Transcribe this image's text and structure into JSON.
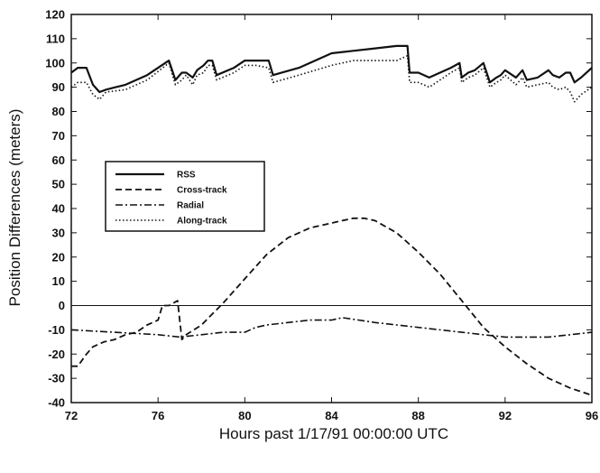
{
  "chart_data": {
    "type": "line",
    "title": "",
    "xlabel": "Hours past 1/17/91 00:00:00 UTC",
    "ylabel": "Position Differences (meters)",
    "xlim": [
      72,
      96
    ],
    "ylim": [
      -40,
      120
    ],
    "xticks": [
      72,
      76,
      80,
      84,
      88,
      92,
      96
    ],
    "yticks": [
      -40,
      -30,
      -20,
      -10,
      0,
      10,
      20,
      30,
      40,
      50,
      60,
      70,
      80,
      90,
      100,
      110,
      120
    ],
    "grid": false,
    "legend_position": "center-left",
    "zero_line": true,
    "series": [
      {
        "name": "RSS",
        "style": "solid",
        "x": [
          72,
          72.3,
          72.7,
          73.0,
          73.3,
          73.6,
          74.5,
          75.5,
          76.5,
          76.8,
          77.1,
          77.3,
          77.6,
          77.8,
          78.1,
          78.3,
          78.5,
          78.7,
          79.5,
          80.0,
          80.5,
          81.1,
          81.3,
          82.5,
          84.0,
          85.0,
          86.0,
          87.0,
          87.5,
          87.6,
          88.0,
          88.5,
          89.0,
          89.5,
          89.9,
          90.0,
          90.3,
          90.6,
          91.0,
          91.3,
          91.6,
          91.8,
          92.0,
          92.5,
          92.8,
          93.0,
          93.5,
          94.0,
          94.2,
          94.5,
          94.8,
          95.0,
          95.2,
          95.5,
          96.0
        ],
        "y": [
          96,
          98,
          98,
          91,
          88,
          89,
          91,
          95,
          101,
          93,
          96,
          96,
          94,
          97,
          99,
          101,
          101,
          95,
          98,
          101,
          101,
          101,
          95,
          98,
          104,
          105,
          106,
          107,
          107,
          96,
          96,
          94,
          96,
          98,
          100,
          94,
          96,
          97,
          100,
          92,
          94,
          95,
          97,
          94,
          97,
          93,
          94,
          97,
          95,
          94,
          96,
          96,
          92,
          94,
          98
        ]
      },
      {
        "name": "Cross-track",
        "style": "dashed",
        "x": [
          72,
          72.3,
          72.7,
          73.0,
          73.5,
          74.0,
          74.5,
          75.0,
          75.5,
          76.0,
          76.2,
          76.5,
          76.7,
          76.9,
          77.1,
          77.3,
          78.0,
          79.0,
          80.0,
          81.0,
          82.0,
          83.0,
          84.0,
          84.5,
          85.0,
          85.5,
          86.0,
          87.0,
          88.0,
          89.0,
          90.0,
          91.0,
          92.0,
          93.0,
          94.0,
          95.0,
          96.0
        ],
        "y": [
          -25,
          -25,
          -20,
          -17,
          -15,
          -14,
          -12,
          -11,
          -8,
          -6,
          0,
          0,
          1,
          2,
          -14,
          -12,
          -8,
          1,
          11,
          21,
          28,
          32,
          34,
          35,
          36,
          36,
          35,
          30,
          22,
          13,
          2,
          -9,
          -17,
          -24,
          -30,
          -34,
          -37
        ]
      },
      {
        "name": "Radial",
        "style": "dashdot",
        "x": [
          72,
          74,
          76,
          77,
          78,
          79,
          80,
          80.5,
          81,
          82,
          83,
          84,
          84.5,
          86,
          88,
          90,
          91,
          92,
          94,
          95,
          96
        ],
        "y": [
          -10,
          -11,
          -12,
          -13,
          -12,
          -11,
          -11,
          -9,
          -8,
          -7,
          -6,
          -6,
          -5,
          -7,
          -9,
          -11,
          -12,
          -13,
          -13,
          -12,
          -11
        ]
      },
      {
        "name": "Along-track",
        "style": "dotted",
        "x": [
          72,
          72.3,
          72.7,
          73.0,
          73.3,
          73.6,
          74.5,
          75.5,
          76.5,
          76.8,
          77.1,
          77.3,
          77.6,
          77.8,
          78.1,
          78.3,
          78.5,
          78.7,
          79.5,
          80.0,
          80.5,
          81.1,
          81.3,
          82.5,
          84.0,
          85.0,
          86.0,
          87.0,
          87.5,
          87.6,
          88.0,
          88.5,
          89.0,
          89.5,
          89.9,
          90.0,
          90.3,
          90.6,
          91.0,
          91.3,
          91.6,
          91.8,
          92.0,
          92.5,
          92.8,
          93.0,
          93.5,
          94.0,
          94.2,
          94.5,
          94.8,
          95.0,
          95.2,
          95.5,
          96.0
        ],
        "y": [
          90,
          92,
          92,
          87,
          85,
          88,
          89,
          93,
          100,
          91,
          93,
          95,
          91,
          95,
          96,
          99,
          99,
          93,
          96,
          99,
          99,
          98,
          92,
          95,
          99,
          101,
          101,
          101,
          103,
          92,
          92,
          90,
          93,
          96,
          98,
          92,
          94,
          95,
          98,
          90,
          92,
          93,
          95,
          91,
          94,
          90,
          91,
          92,
          90,
          89,
          90,
          88,
          84,
          87,
          90
        ]
      }
    ]
  }
}
